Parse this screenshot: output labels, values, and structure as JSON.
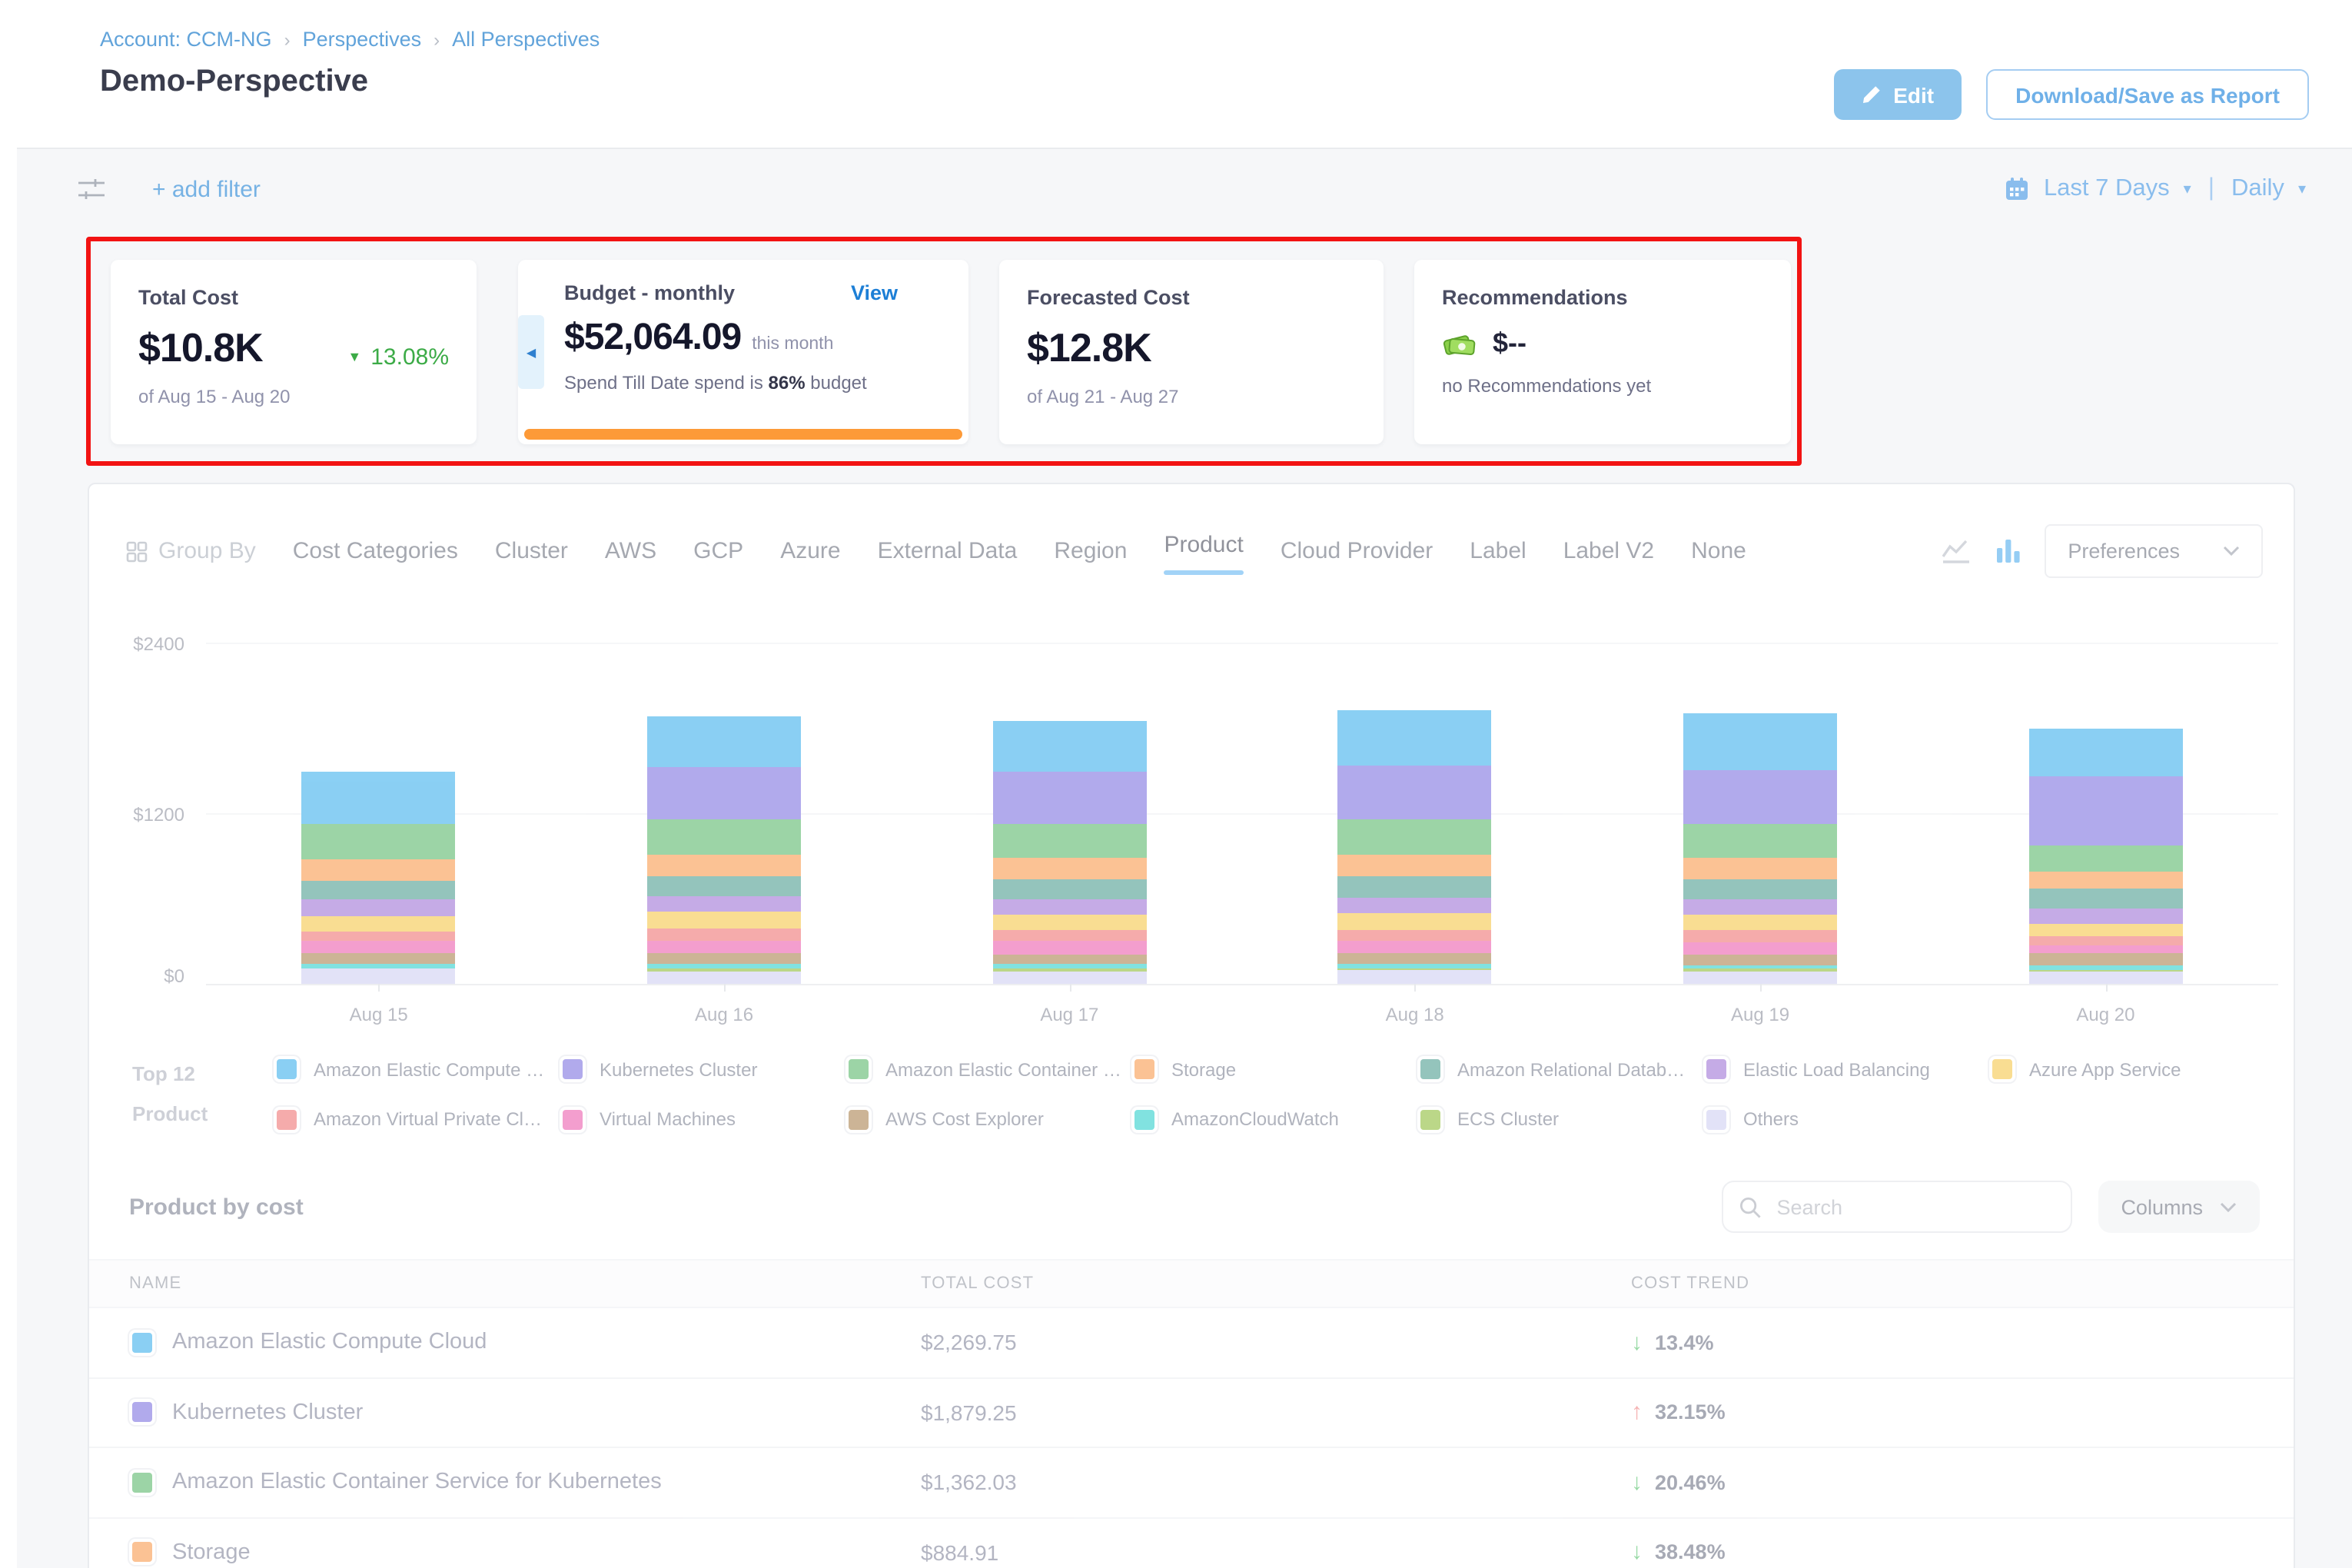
{
  "breadcrumb": {
    "account": "Account: CCM-NG",
    "perspectives": "Perspectives",
    "all_perspectives": "All Perspectives"
  },
  "page_title": "Demo-Perspective",
  "header": {
    "edit_label": "Edit",
    "download_label": "Download/Save as Report"
  },
  "filter_bar": {
    "add_filter_label": "+ add filter",
    "date_range": "Last 7 Days",
    "granularity": "Daily"
  },
  "cards": {
    "total_cost": {
      "title": "Total Cost",
      "value": "$10.8K",
      "trend": "13.08%",
      "trend_direction": "down",
      "trend_color": "#3cab47",
      "period": "of Aug 15 - Aug 20"
    },
    "budget": {
      "title": "Budget - monthly",
      "view_label": "View",
      "value": "$52,064.09",
      "value_suffix": "this month",
      "status_prefix": "Spend Till Date spend is",
      "status_pct": "86%",
      "status_suffix": "budget",
      "bar_color": "#fd9a38"
    },
    "forecasted": {
      "title": "Forecasted Cost",
      "value": "$12.8K",
      "period": "of Aug 21 - Aug 27"
    },
    "recommendations": {
      "title": "Recommendations",
      "value": "$--",
      "subtitle": "no Recommendations yet",
      "icon": "money-bills-icon"
    }
  },
  "groupby": {
    "label": "Group By",
    "tabs": [
      "Cost Categories",
      "Cluster",
      "AWS",
      "GCP",
      "Azure",
      "External Data",
      "Region",
      "Product",
      "Cloud Provider",
      "Label",
      "Label V2",
      "None"
    ],
    "active_tab": "Product",
    "preferences_label": "Preferences",
    "accent_color": "#66b6f2"
  },
  "chart_data": {
    "type": "bar",
    "stacked": true,
    "title": "Perspective cost over time grouped by Product",
    "categories": [
      "Aug 15",
      "Aug 16",
      "Aug 17",
      "Aug 18",
      "Aug 19",
      "Aug 20"
    ],
    "yticks": [
      "$0",
      "$1200",
      "$2400"
    ],
    "ylim": [
      0,
      2400
    ],
    "grid": true,
    "legend_position": "bottom",
    "series_bottom_to_top": [
      {
        "name": "Others",
        "color": "#cfcff2",
        "values": [
          103,
          84,
          90,
          95,
          90,
          85
        ]
      },
      {
        "name": "ECS Cluster",
        "color": "#8fbe3a",
        "values": [
          0,
          27,
          20,
          18,
          20,
          15
        ]
      },
      {
        "name": "AmazonCloudWatch",
        "color": "#2ed0cc",
        "values": [
          33,
          31,
          30,
          25,
          25,
          28
        ]
      },
      {
        "name": "AWS Cost Explorer",
        "color": "#ab8352",
        "values": [
          76,
          72,
          70,
          75,
          72,
          88
        ]
      },
      {
        "name": "Virtual Machines",
        "color": "#ec5fae",
        "values": [
          86,
          92,
          88,
          85,
          88,
          55
        ]
      },
      {
        "name": "Amazon Virtual Private Cloud",
        "color": "#f07575",
        "values": [
          72,
          84,
          80,
          85,
          82,
          70
        ]
      },
      {
        "name": "Azure App Service",
        "color": "#f6c74a",
        "values": [
          107,
          121,
          110,
          115,
          112,
          80
        ]
      },
      {
        "name": "Elastic Load Balancing",
        "color": "#9f74d6",
        "values": [
          113,
          103,
          105,
          110,
          108,
          115
        ]
      },
      {
        "name": "Amazon Relational Database Service",
        "color": "#4e9d90",
        "values": [
          136,
          142,
          140,
          145,
          140,
          130
        ]
      },
      {
        "name": "Storage",
        "color": "#fa9a4e",
        "values": [
          154,
          154,
          150,
          155,
          150,
          120
        ]
      },
      {
        "name": "Amazon Elastic Container Service for Kubernetes",
        "color": "#5cb86c",
        "values": [
          246,
          244,
          240,
          245,
          240,
          185
        ]
      },
      {
        "name": "Kubernetes Cluster",
        "color": "#7e72e0",
        "values": [
          0,
          370,
          365,
          380,
          375,
          490
        ]
      },
      {
        "name": "Amazon Elastic Compute Cloud",
        "color": "#3db0ec",
        "values": [
          365,
          357,
          360,
          390,
          400,
          330
        ]
      }
    ]
  },
  "legend": {
    "label_line1": "Top 12",
    "label_line2": "Product",
    "items": [
      {
        "name": "Amazon Elastic Compute Clo...",
        "color": "#3db0ec"
      },
      {
        "name": "Kubernetes Cluster",
        "color": "#7e72e0"
      },
      {
        "name": "Amazon Elastic Container Se...",
        "color": "#5cb86c"
      },
      {
        "name": "Storage",
        "color": "#fa9a4e"
      },
      {
        "name": "Amazon Relational Database ...",
        "color": "#4e9d90"
      },
      {
        "name": "Elastic Load Balancing",
        "color": "#9f74d6"
      },
      {
        "name": "Azure App Service",
        "color": "#f6c74a"
      },
      {
        "name": "Amazon Virtual Private Cloud",
        "color": "#f07575"
      },
      {
        "name": "Virtual Machines",
        "color": "#ec5fae"
      },
      {
        "name": "AWS Cost Explorer",
        "color": "#ab8352"
      },
      {
        "name": "AmazonCloudWatch",
        "color": "#2ed0cc"
      },
      {
        "name": "ECS Cluster",
        "color": "#8fbe3a"
      },
      {
        "name": "Others",
        "color": "#cfcff2"
      }
    ]
  },
  "table": {
    "title": "Product by cost",
    "search_placeholder": "Search",
    "columns_label": "Columns",
    "headers": [
      "NAME",
      "TOTAL COST",
      "COST TREND"
    ],
    "rows": [
      {
        "name": "Amazon Elastic Compute Cloud",
        "color": "#3db0ec",
        "total_cost": "$2,269.75",
        "trend": "13.4%",
        "trend_direction": "down"
      },
      {
        "name": "Kubernetes Cluster",
        "color": "#7e72e0",
        "total_cost": "$1,879.25",
        "trend": "32.15%",
        "trend_direction": "up"
      },
      {
        "name": "Amazon Elastic Container Service for Kubernetes",
        "color": "#5cb86c",
        "total_cost": "$1,362.03",
        "trend": "20.46%",
        "trend_direction": "down"
      },
      {
        "name": "Storage",
        "color": "#fa9a4e",
        "total_cost": "$884.91",
        "trend": "38.48%",
        "trend_direction": "down"
      }
    ]
  }
}
